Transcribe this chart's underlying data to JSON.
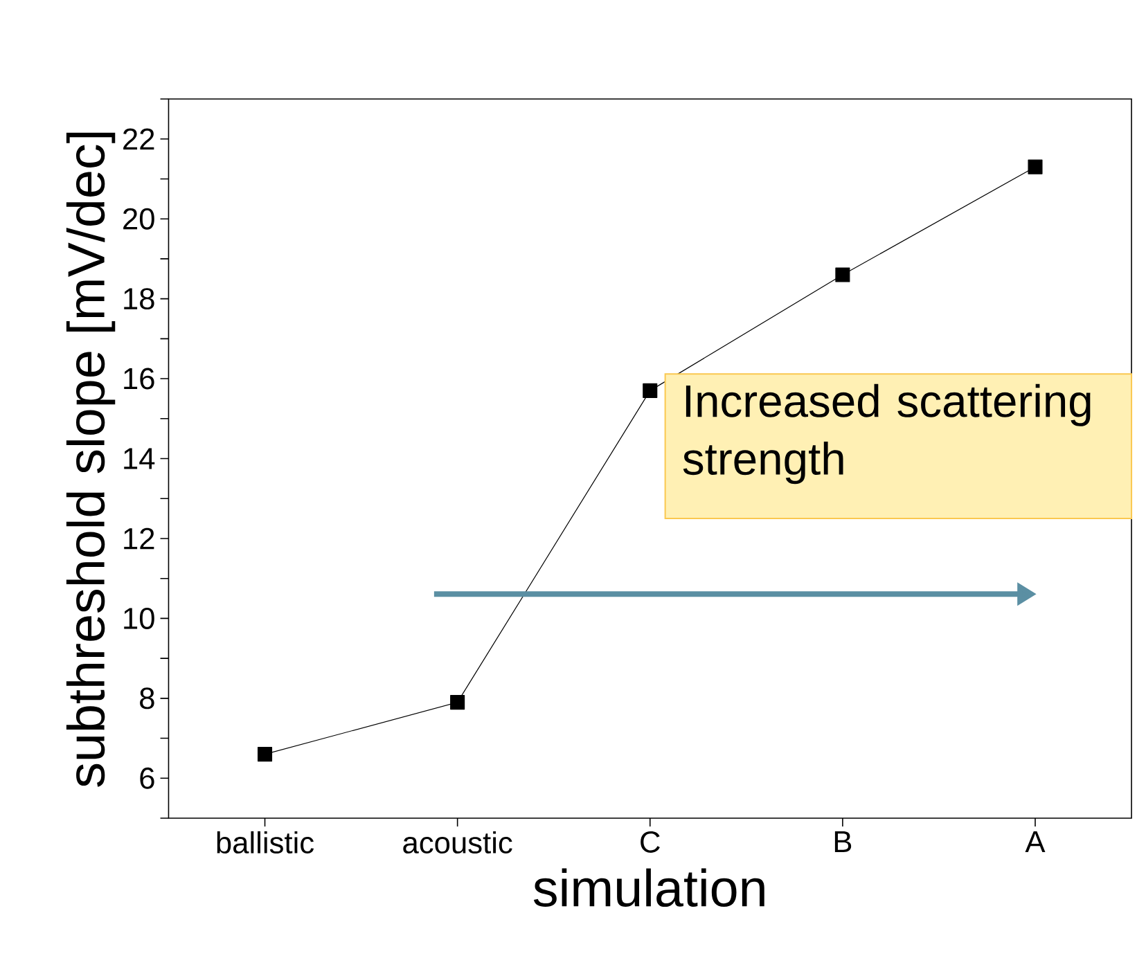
{
  "chart_data": {
    "type": "line",
    "xlabel": "simulation",
    "ylabel": "subthreshold slope [mV/dec]",
    "categories": [
      "ballistic",
      "acoustic",
      "C",
      "B",
      "A"
    ],
    "values": [
      6.6,
      7.9,
      15.7,
      18.6,
      21.3
    ],
    "color": "#000000",
    "marker": "square",
    "line_style": "solid",
    "grid": false,
    "ylim": [
      5,
      23
    ],
    "yticks": [
      {
        "value": 5,
        "label": null
      },
      6,
      {
        "value": 7,
        "label": null
      },
      8,
      {
        "value": 9,
        "label": null
      },
      10,
      {
        "value": 11,
        "label": null
      },
      12,
      {
        "value": 13,
        "label": null
      },
      14,
      {
        "value": 15,
        "label": null
      },
      16,
      {
        "value": 17,
        "label": null
      },
      18,
      {
        "value": 19,
        "label": null
      },
      20,
      {
        "value": 21,
        "label": null
      },
      22,
      {
        "value": 23,
        "label": null
      }
    ],
    "annotations": [
      "Increased scattering strength"
    ]
  }
}
